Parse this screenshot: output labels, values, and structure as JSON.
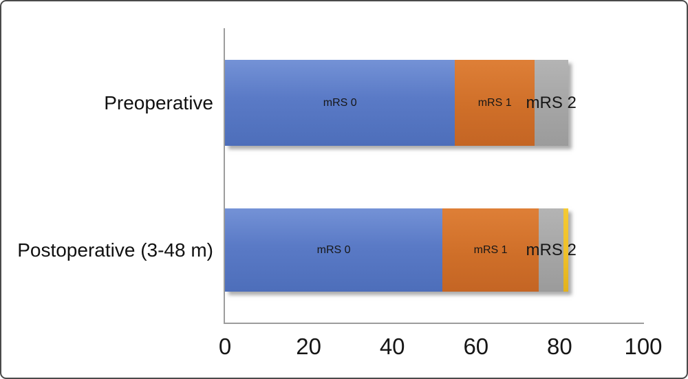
{
  "figure": {
    "background": "#ffffff",
    "border_color": "#4a4a4a"
  },
  "chart_data": {
    "type": "bar",
    "orientation": "horizontal",
    "stacked": true,
    "title": "",
    "xlabel": "",
    "ylabel": "",
    "xlim": [
      0,
      100
    ],
    "x_ticks": [
      0,
      20,
      40,
      60,
      80,
      100
    ],
    "grid": false,
    "legend_position": "none",
    "label_style": "segment labels drawn inside bars",
    "categories": [
      "Preoperative",
      "Postoperative (3-48 m)"
    ],
    "series": [
      {
        "name": "mRS 0",
        "color": "#5b7cc5",
        "values": [
          55,
          52
        ]
      },
      {
        "name": "mRS 1",
        "color": "#d0702c",
        "values": [
          19,
          23
        ]
      },
      {
        "name": "mRS 2",
        "color": "#a6a6a6",
        "values": [
          8,
          6
        ]
      },
      {
        "name": "",
        "color": "#eec02a",
        "values": [
          0,
          1
        ]
      }
    ]
  },
  "bars": [
    {
      "category": "Preoperative",
      "segments": [
        {
          "label": "mRS 0",
          "value": 55,
          "color_key": "blue",
          "label_size": "small"
        },
        {
          "label": "mRS 1",
          "value": 19,
          "color_key": "orange",
          "label_size": "small"
        },
        {
          "label": "mRS 2",
          "value": 8,
          "color_key": "gray",
          "label_size": "large"
        }
      ]
    },
    {
      "category": "Postoperative (3-48 m)",
      "segments": [
        {
          "label": "mRS 0",
          "value": 52,
          "color_key": "blue",
          "label_size": "small"
        },
        {
          "label": "mRS 1",
          "value": 23,
          "color_key": "orange",
          "label_size": "small"
        },
        {
          "label": "mRS 2",
          "value": 6,
          "color_key": "gray",
          "label_size": "large"
        },
        {
          "label": "",
          "value": 1,
          "color_key": "yellow",
          "label_size": "small"
        }
      ]
    }
  ],
  "axis": {
    "tick_labels": [
      "0",
      "20",
      "40",
      "60",
      "80",
      "100"
    ]
  },
  "segment_colors": {
    "blue": "#5b7cc5",
    "orange": "#d0702c",
    "gray": "#a6a6a6",
    "yellow": "#eec02a"
  }
}
